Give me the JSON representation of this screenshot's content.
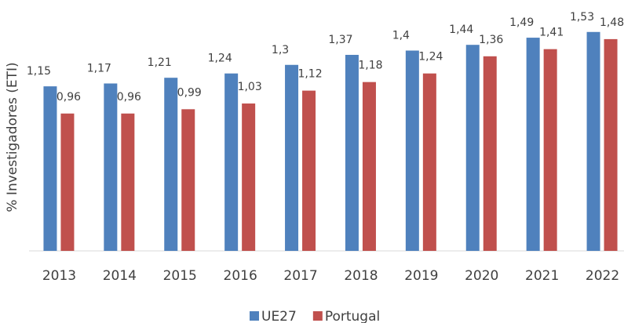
{
  "chart_data": {
    "type": "bar",
    "y_label": "% Investigadores (ETI)",
    "categories": [
      "2013",
      "2014",
      "2015",
      "2016",
      "2017",
      "2018",
      "2019",
      "2020",
      "2021",
      "2022"
    ],
    "series": [
      {
        "name": "UE27",
        "color": "#4f81bd",
        "values": [
          1.15,
          1.17,
          1.21,
          1.24,
          1.3,
          1.37,
          1.4,
          1.44,
          1.49,
          1.53
        ],
        "value_labels": [
          "1,15",
          "1,17",
          "1,21",
          "1,24",
          "1,3",
          "1,37",
          "1,4",
          "1,44",
          "1,49",
          "1,53"
        ]
      },
      {
        "name": "Portugal",
        "color": "#c0504d",
        "values": [
          0.96,
          0.96,
          0.99,
          1.03,
          1.12,
          1.18,
          1.24,
          1.36,
          1.41,
          1.48
        ],
        "value_labels": [
          "0,96",
          "0,96",
          "0,99",
          "1,03",
          "1,12",
          "1,18",
          "1,24",
          "1,36",
          "1,41",
          "1,48"
        ]
      }
    ],
    "ylim": [
      0,
      1.6
    ],
    "legend": "bottom"
  }
}
